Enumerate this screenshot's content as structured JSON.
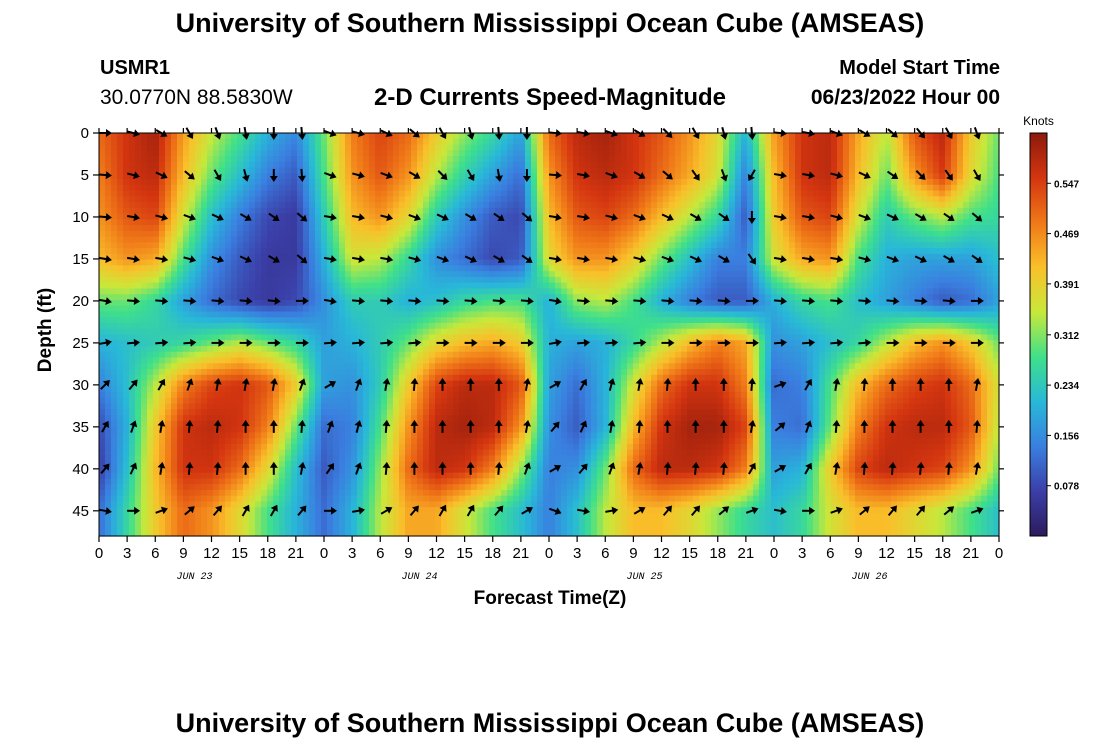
{
  "header": {
    "title": "University of Southern Mississippi Ocean Cube (AMSEAS)",
    "station_id": "USMR1",
    "coordinates": "30.0770N  88.5830W",
    "subtitle": "2-D Currents Speed-Magnitude",
    "model_start_label": "Model Start Time",
    "model_start_value": "06/23/2022 Hour 00"
  },
  "footer": {
    "title": "University of Southern Mississippi Ocean Cube (AMSEAS)"
  },
  "chart_data": {
    "type": "heatmap",
    "title": "2-D Currents Speed-Magnitude",
    "xlabel": "Forecast Time(Z)",
    "ylabel": "Depth (ft)",
    "x_ticks": [
      "0",
      "3",
      "6",
      "9",
      "12",
      "15",
      "18",
      "21",
      "0",
      "3",
      "6",
      "9",
      "12",
      "15",
      "18",
      "21",
      "0",
      "3",
      "6",
      "9",
      "12",
      "15",
      "18",
      "21",
      "0",
      "3",
      "6",
      "9",
      "12",
      "15",
      "18",
      "21",
      "0"
    ],
    "day_labels": [
      "JUN 23",
      "JUN 24",
      "JUN 25",
      "JUN 26"
    ],
    "y_ticks": [
      "0",
      "5",
      "10",
      "15",
      "20",
      "25",
      "30",
      "35",
      "40",
      "45"
    ],
    "ylim": [
      0,
      48
    ],
    "xlim_hours": [
      0,
      96
    ],
    "colorbar": {
      "unit": "Knots",
      "ticks": [
        "0.547",
        "0.469",
        "0.391",
        "0.312",
        "0.234",
        "0.156",
        "0.078"
      ],
      "range": [
        0.0,
        0.625
      ],
      "colors": [
        "#2c1b5c",
        "#3b3fa8",
        "#3a7fe0",
        "#28b8d8",
        "#3fe08a",
        "#c8e83a",
        "#f9c02a",
        "#f07818",
        "#d43510",
        "#8c1a0c"
      ]
    },
    "depths_ft": [
      0,
      5,
      10,
      15,
      20,
      25,
      30,
      35,
      40,
      45
    ],
    "hours": [
      0,
      3,
      6,
      9,
      12,
      15,
      18,
      21,
      24,
      27,
      30,
      33,
      36,
      39,
      42,
      45,
      48,
      51,
      54,
      57,
      60,
      63,
      66,
      69,
      72,
      75,
      78,
      81,
      84,
      87,
      90,
      93,
      96
    ],
    "speed_knots": [
      [
        0.5,
        0.56,
        0.6,
        0.45,
        0.35,
        0.28,
        0.2,
        0.15,
        0.3,
        0.48,
        0.54,
        0.5,
        0.4,
        0.32,
        0.26,
        0.18,
        0.5,
        0.58,
        0.6,
        0.56,
        0.52,
        0.46,
        0.38,
        0.2,
        0.45,
        0.56,
        0.58,
        0.44,
        0.34,
        0.52,
        0.58,
        0.4,
        0.3
      ],
      [
        0.48,
        0.56,
        0.58,
        0.42,
        0.3,
        0.22,
        0.14,
        0.1,
        0.28,
        0.46,
        0.52,
        0.46,
        0.34,
        0.25,
        0.18,
        0.12,
        0.46,
        0.56,
        0.58,
        0.56,
        0.5,
        0.44,
        0.36,
        0.14,
        0.42,
        0.56,
        0.58,
        0.42,
        0.3,
        0.46,
        0.55,
        0.38,
        0.28
      ],
      [
        0.46,
        0.52,
        0.54,
        0.36,
        0.22,
        0.14,
        0.08,
        0.06,
        0.24,
        0.42,
        0.46,
        0.38,
        0.24,
        0.16,
        0.1,
        0.08,
        0.42,
        0.52,
        0.54,
        0.5,
        0.42,
        0.34,
        0.26,
        0.1,
        0.4,
        0.52,
        0.54,
        0.36,
        0.24,
        0.3,
        0.34,
        0.28,
        0.26
      ],
      [
        0.42,
        0.46,
        0.44,
        0.28,
        0.16,
        0.1,
        0.06,
        0.06,
        0.2,
        0.36,
        0.34,
        0.26,
        0.16,
        0.12,
        0.08,
        0.1,
        0.38,
        0.46,
        0.46,
        0.4,
        0.3,
        0.22,
        0.14,
        0.14,
        0.36,
        0.44,
        0.46,
        0.28,
        0.2,
        0.18,
        0.18,
        0.18,
        0.22
      ],
      [
        0.3,
        0.3,
        0.26,
        0.18,
        0.12,
        0.08,
        0.06,
        0.08,
        0.16,
        0.24,
        0.24,
        0.2,
        0.22,
        0.26,
        0.28,
        0.28,
        0.2,
        0.32,
        0.34,
        0.28,
        0.2,
        0.14,
        0.1,
        0.1,
        0.2,
        0.26,
        0.28,
        0.22,
        0.18,
        0.14,
        0.1,
        0.12,
        0.18
      ],
      [
        0.2,
        0.22,
        0.24,
        0.26,
        0.3,
        0.34,
        0.3,
        0.26,
        0.18,
        0.2,
        0.24,
        0.3,
        0.38,
        0.42,
        0.44,
        0.4,
        0.2,
        0.18,
        0.2,
        0.26,
        0.34,
        0.42,
        0.48,
        0.44,
        0.16,
        0.18,
        0.22,
        0.26,
        0.34,
        0.42,
        0.46,
        0.4,
        0.3
      ],
      [
        0.14,
        0.22,
        0.34,
        0.48,
        0.54,
        0.56,
        0.52,
        0.4,
        0.18,
        0.16,
        0.24,
        0.4,
        0.54,
        0.58,
        0.58,
        0.52,
        0.18,
        0.12,
        0.2,
        0.36,
        0.5,
        0.56,
        0.56,
        0.48,
        0.12,
        0.14,
        0.28,
        0.42,
        0.5,
        0.54,
        0.56,
        0.5,
        0.36
      ],
      [
        0.08,
        0.2,
        0.4,
        0.56,
        0.58,
        0.56,
        0.48,
        0.3,
        0.12,
        0.14,
        0.28,
        0.46,
        0.58,
        0.6,
        0.58,
        0.46,
        0.16,
        0.1,
        0.2,
        0.42,
        0.56,
        0.6,
        0.6,
        0.54,
        0.14,
        0.12,
        0.3,
        0.48,
        0.56,
        0.58,
        0.58,
        0.52,
        0.34
      ],
      [
        0.06,
        0.22,
        0.42,
        0.56,
        0.56,
        0.5,
        0.38,
        0.22,
        0.1,
        0.16,
        0.32,
        0.5,
        0.58,
        0.56,
        0.48,
        0.32,
        0.14,
        0.16,
        0.3,
        0.5,
        0.58,
        0.58,
        0.56,
        0.48,
        0.18,
        0.2,
        0.4,
        0.54,
        0.58,
        0.56,
        0.54,
        0.46,
        0.3
      ],
      [
        0.12,
        0.26,
        0.4,
        0.5,
        0.46,
        0.38,
        0.28,
        0.2,
        0.12,
        0.2,
        0.34,
        0.44,
        0.44,
        0.36,
        0.28,
        0.22,
        0.14,
        0.22,
        0.34,
        0.42,
        0.42,
        0.38,
        0.32,
        0.26,
        0.22,
        0.26,
        0.36,
        0.42,
        0.42,
        0.38,
        0.34,
        0.28,
        0.22
      ]
    ],
    "direction_deg": [
      [
        90,
        105,
        120,
        150,
        160,
        170,
        180,
        175,
        110,
        105,
        115,
        130,
        150,
        165,
        175,
        180,
        95,
        100,
        110,
        120,
        135,
        150,
        165,
        175,
        95,
        100,
        110,
        120,
        130,
        140,
        150,
        160,
        170
      ],
      [
        95,
        105,
        115,
        130,
        150,
        165,
        180,
        175,
        110,
        105,
        110,
        120,
        135,
        150,
        170,
        180,
        95,
        100,
        110,
        120,
        130,
        145,
        160,
        210,
        100,
        100,
        105,
        115,
        125,
        135,
        145,
        150,
        160
      ],
      [
        95,
        100,
        105,
        110,
        115,
        120,
        125,
        130,
        100,
        100,
        105,
        110,
        115,
        120,
        125,
        130,
        100,
        100,
        105,
        110,
        115,
        120,
        125,
        180,
        100,
        100,
        105,
        110,
        115,
        120,
        125,
        130,
        140
      ],
      [
        100,
        100,
        100,
        105,
        110,
        115,
        120,
        130,
        100,
        100,
        100,
        105,
        110,
        115,
        120,
        125,
        100,
        100,
        100,
        105,
        110,
        115,
        120,
        145,
        100,
        100,
        100,
        105,
        110,
        115,
        120,
        125,
        130
      ],
      [
        100,
        95,
        95,
        95,
        95,
        95,
        95,
        90,
        100,
        95,
        95,
        95,
        95,
        95,
        95,
        95,
        100,
        95,
        95,
        95,
        95,
        95,
        95,
        90,
        95,
        95,
        95,
        95,
        95,
        95,
        95,
        90,
        95
      ],
      [
        80,
        85,
        85,
        85,
        90,
        90,
        90,
        90,
        85,
        85,
        85,
        85,
        90,
        90,
        90,
        90,
        80,
        85,
        85,
        85,
        90,
        90,
        90,
        90,
        85,
        85,
        85,
        85,
        90,
        90,
        90,
        90,
        90
      ],
      [
        45,
        40,
        30,
        20,
        10,
        10,
        10,
        20,
        60,
        20,
        10,
        5,
        0,
        0,
        0,
        10,
        60,
        30,
        15,
        10,
        5,
        0,
        0,
        5,
        70,
        30,
        10,
        5,
        0,
        0,
        0,
        10,
        20
      ],
      [
        30,
        20,
        10,
        5,
        5,
        0,
        0,
        5,
        20,
        15,
        5,
        0,
        0,
        0,
        0,
        10,
        40,
        25,
        10,
        5,
        0,
        0,
        0,
        10,
        50,
        20,
        5,
        0,
        0,
        0,
        0,
        5,
        10
      ],
      [
        40,
        25,
        10,
        5,
        5,
        0,
        0,
        10,
        35,
        20,
        5,
        0,
        0,
        0,
        5,
        20,
        60,
        40,
        20,
        10,
        5,
        5,
        5,
        30,
        60,
        30,
        10,
        5,
        5,
        5,
        5,
        10,
        20
      ],
      [
        100,
        90,
        70,
        50,
        40,
        30,
        30,
        40,
        90,
        80,
        60,
        40,
        30,
        30,
        40,
        60,
        110,
        100,
        80,
        60,
        40,
        40,
        50,
        70,
        100,
        90,
        70,
        50,
        40,
        40,
        50,
        70,
        90
      ]
    ]
  }
}
